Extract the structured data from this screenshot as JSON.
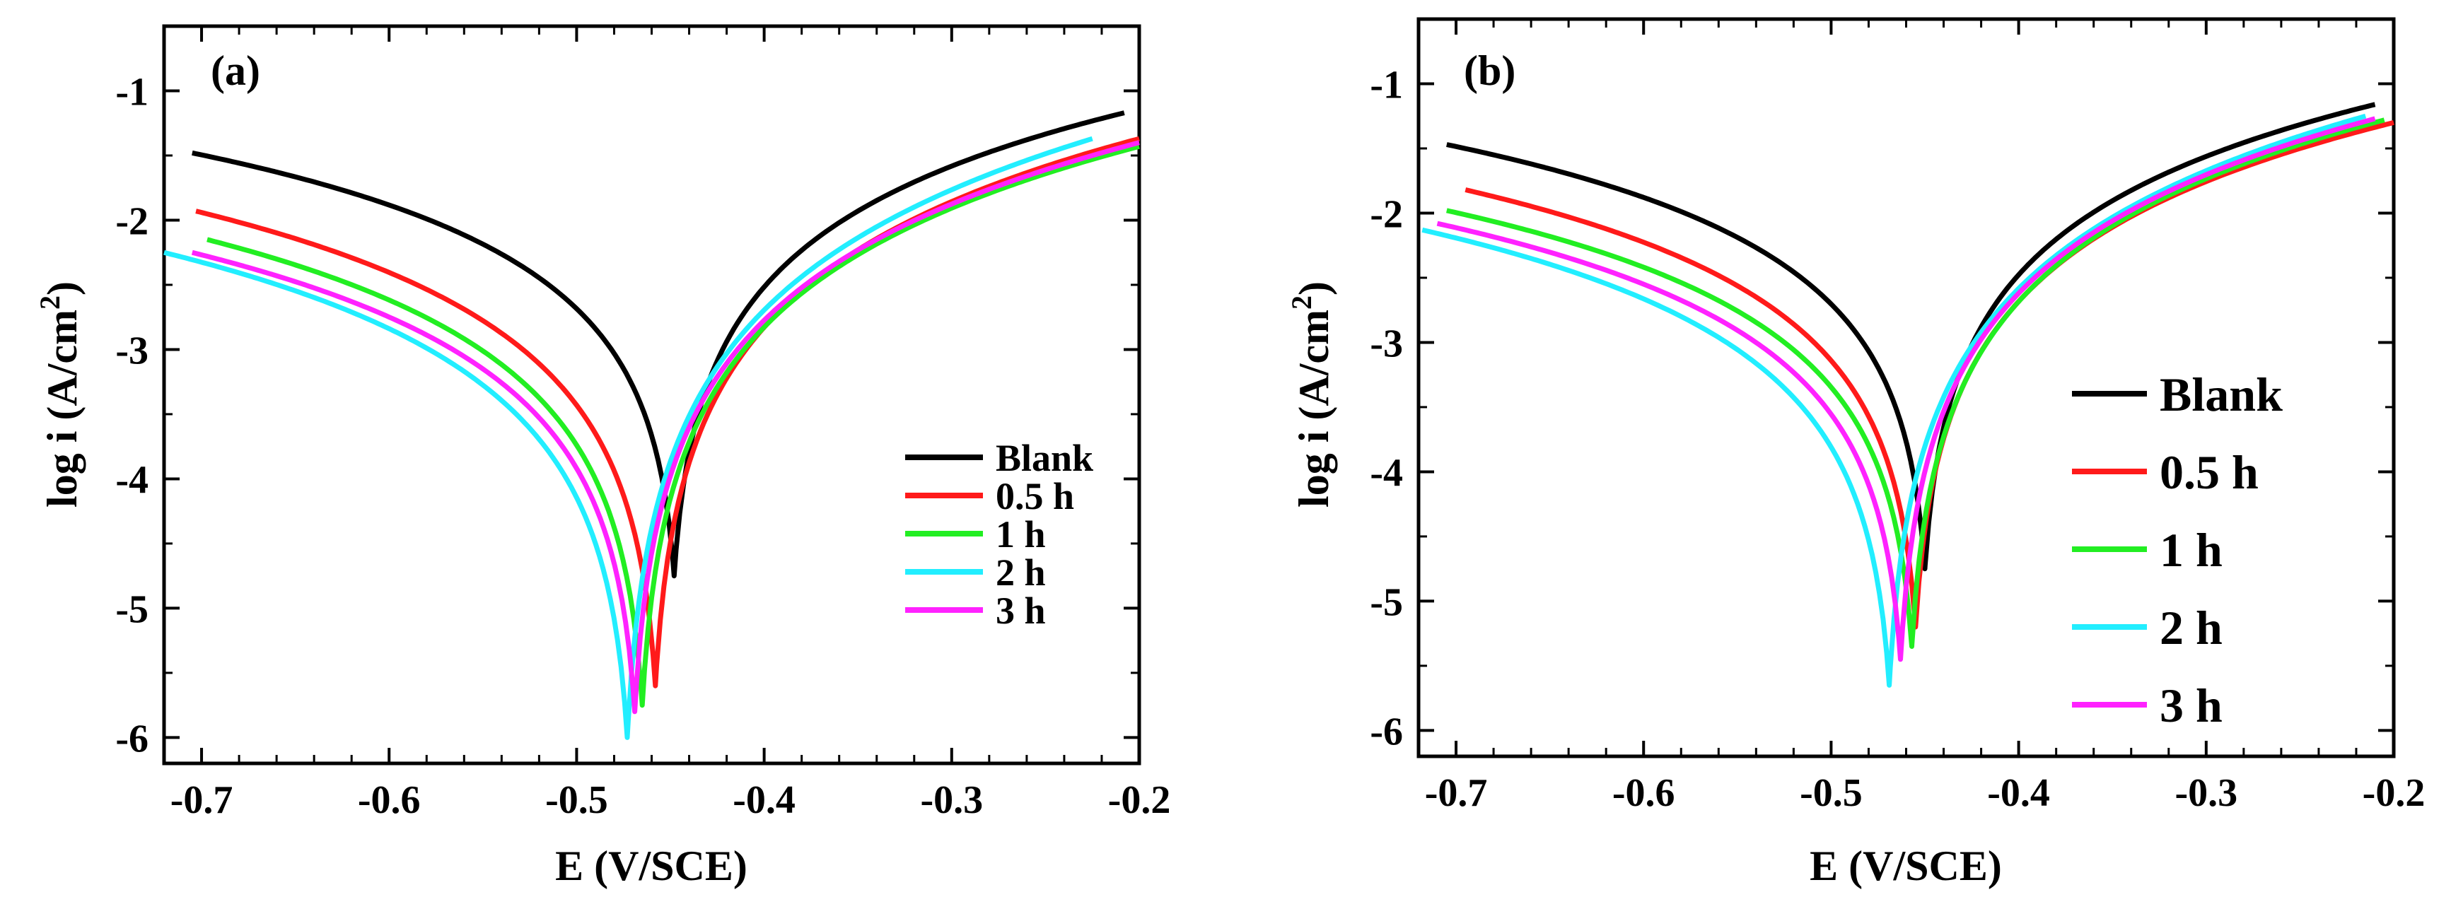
{
  "chart_data": [
    {
      "type": "line",
      "panel_label": "(a)",
      "xlabel": "E (V/SCE)",
      "ylabel": "log i (A/cm",
      "ylabel_sup": "2",
      "ylabel_close": ")",
      "xlim": [
        -0.72,
        -0.2
      ],
      "ylim": [
        -6.2,
        -0.5
      ],
      "xticks": [
        -0.7,
        -0.6,
        -0.5,
        -0.4,
        -0.3,
        -0.2
      ],
      "xtick_labels": [
        "-0.7",
        "-0.6",
        "-0.5",
        "-0.4",
        "-0.3",
        "-0.2"
      ],
      "yticks": [
        -1,
        -2,
        -3,
        -4,
        -5,
        -6
      ],
      "ytick_labels": [
        "-1",
        "-2",
        "-3",
        "-4",
        "-5",
        "-6"
      ],
      "legend_position": "bottom-right",
      "series": [
        {
          "name": "Blank",
          "color": "#000000",
          "ecorr": -0.448,
          "min": -4.75,
          "start": [
            -0.705,
            -1.48
          ],
          "end": [
            -0.208,
            -1.17
          ]
        },
        {
          "name": "0.5 h",
          "color": "#ff1a1a",
          "ecorr": -0.458,
          "min": -5.6,
          "start": [
            -0.703,
            -1.93
          ],
          "end": [
            -0.2,
            -1.37
          ]
        },
        {
          "name": "1 h",
          "color": "#22ee22",
          "ecorr": -0.465,
          "min": -5.75,
          "start": [
            -0.697,
            -2.15
          ],
          "end": [
            -0.2,
            -1.43
          ]
        },
        {
          "name": "2 h",
          "color": "#22eeff",
          "ecorr": -0.473,
          "min": -6.0,
          "start": [
            -0.72,
            -2.25
          ],
          "end": [
            -0.225,
            -1.37
          ]
        },
        {
          "name": "3 h",
          "color": "#ff22ff",
          "ecorr": -0.469,
          "min": -5.8,
          "start": [
            -0.705,
            -2.25
          ],
          "end": [
            -0.2,
            -1.4
          ]
        }
      ]
    },
    {
      "type": "line",
      "panel_label": "(b)",
      "xlabel": "E (V/SCE)",
      "ylabel": "log i (A/cm",
      "ylabel_sup": "2",
      "ylabel_close": ")",
      "xlim": [
        -0.72,
        -0.2
      ],
      "ylim": [
        -6.2,
        -0.5
      ],
      "xticks": [
        -0.7,
        -0.6,
        -0.5,
        -0.4,
        -0.3,
        -0.2
      ],
      "xtick_labels": [
        "-0.7",
        "-0.6",
        "-0.5",
        "-0.4",
        "-0.3",
        "-0.2"
      ],
      "yticks": [
        -1,
        -2,
        -3,
        -4,
        -5,
        -6
      ],
      "ytick_labels": [
        "-1",
        "-2",
        "-3",
        "-4",
        "-5",
        "-6"
      ],
      "legend_position": "right",
      "series": [
        {
          "name": "Blank",
          "color": "#000000",
          "ecorr": -0.45,
          "min": -4.75,
          "start": [
            -0.705,
            -1.47
          ],
          "end": [
            -0.21,
            -1.16
          ]
        },
        {
          "name": "0.5 h",
          "color": "#ff1a1a",
          "ecorr": -0.455,
          "min": -5.2,
          "start": [
            -0.695,
            -1.82
          ],
          "end": [
            -0.2,
            -1.3
          ]
        },
        {
          "name": "1 h",
          "color": "#22ee22",
          "ecorr": -0.457,
          "min": -5.35,
          "start": [
            -0.705,
            -1.98
          ],
          "end": [
            -0.205,
            -1.28
          ]
        },
        {
          "name": "2 h",
          "color": "#22eeff",
          "ecorr": -0.469,
          "min": -5.65,
          "start": [
            -0.718,
            -2.13
          ],
          "end": [
            -0.215,
            -1.25
          ]
        },
        {
          "name": "3 h",
          "color": "#ff22ff",
          "ecorr": -0.463,
          "min": -5.45,
          "start": [
            -0.71,
            -2.08
          ],
          "end": [
            -0.21,
            -1.27
          ]
        }
      ]
    }
  ]
}
